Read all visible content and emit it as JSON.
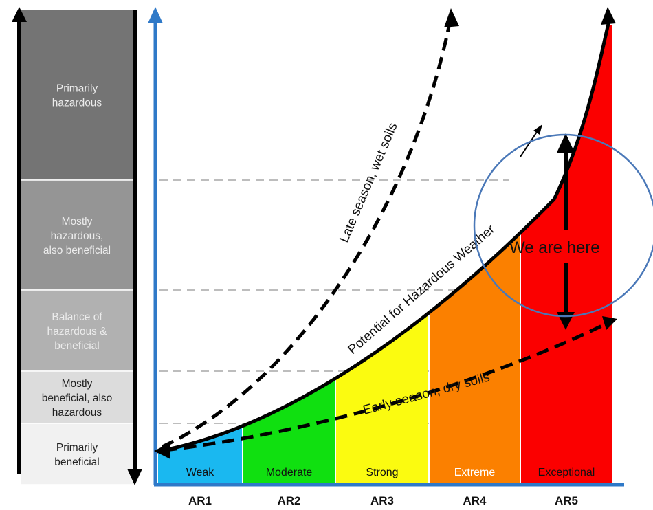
{
  "left_scale": {
    "bands": [
      {
        "label": [
          "Primarily",
          "hazardous"
        ],
        "fill": "#747474",
        "text_color": "#ececec"
      },
      {
        "label": [
          "Mostly",
          "hazardous,",
          "also beneficial"
        ],
        "fill": "#959595",
        "text_color": "#ececec"
      },
      {
        "label": [
          "Balance of",
          "hazardous &",
          "beneficial"
        ],
        "fill": "#b1b1b1",
        "text_color": "#ececec"
      },
      {
        "label": [
          "Mostly",
          "beneficial, also",
          "hazardous"
        ],
        "fill": "#dcdcdc",
        "text_color": "#222222"
      },
      {
        "label": [
          "Primarily",
          "beneficial"
        ],
        "fill": "#f1f1f1",
        "text_color": "#222222"
      }
    ]
  },
  "categories": [
    {
      "code": "AR1",
      "name": "Weak",
      "fill": "#1ab8f0",
      "text_color": "#111111"
    },
    {
      "code": "AR2",
      "name": "Moderate",
      "fill": "#10e010",
      "text_color": "#111111"
    },
    {
      "code": "AR3",
      "name": "Strong",
      "fill": "#fbfb10",
      "text_color": "#111111"
    },
    {
      "code": "AR4",
      "name": "Extreme",
      "fill": "#fb8000",
      "text_color": "#ffffff"
    },
    {
      "code": "AR5",
      "name": "Exceptional",
      "fill": "#fb0000",
      "text_color": "#111111"
    }
  ],
  "curves": {
    "main": "Potential for Hazardous Weather",
    "late": "Late season, wet soils",
    "early": "Early season, dry soils"
  },
  "callout": {
    "text": "We are here",
    "circle_color": "#4a78b8"
  },
  "colors": {
    "y_axis": "#2f79c8",
    "x_axis": "#2f79c8",
    "left_axis": "#000000",
    "gridline": "#bdbdbd"
  }
}
